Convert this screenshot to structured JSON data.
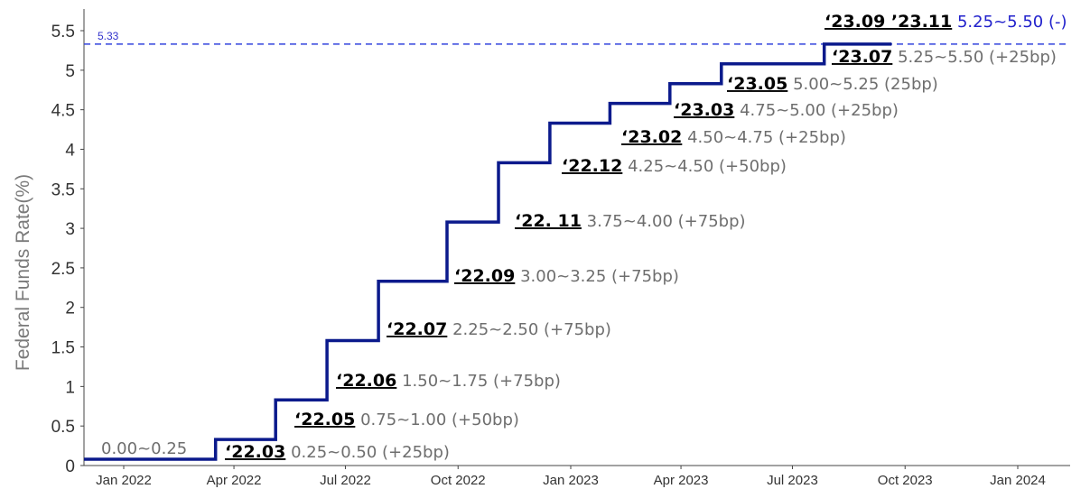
{
  "chart_data": {
    "type": "line",
    "ylabel": "Federal Funds Rate(%)",
    "xlabel": "",
    "ylim": [
      0,
      5.6
    ],
    "yticks": [
      "0",
      "0.5",
      "1",
      "1.5",
      "2",
      "2.5",
      "3",
      "3.5",
      "4",
      "4.5",
      "5",
      "5.5"
    ],
    "xticks": [
      "Jan 2022",
      "Apr 2022",
      "Jul 2022",
      "Oct 2022",
      "Jan 2023",
      "Apr 2023",
      "Jul 2023",
      "Oct 2023",
      "Jan 2024"
    ],
    "xtick_dates": [
      "2022-01-01",
      "2022-04-01",
      "2022-07-01",
      "2022-10-01",
      "2023-01-01",
      "2023-04-01",
      "2023-07-01",
      "2023-10-01",
      "2024-01-01"
    ],
    "series": [
      {
        "color": "#0b1a8c",
        "step": true,
        "x": [
          "2021-12-01",
          "2022-03-17",
          "2022-05-05",
          "2022-06-16",
          "2022-07-28",
          "2022-09-22",
          "2022-11-03",
          "2022-12-15",
          "2023-02-02",
          "2023-03-23",
          "2023-05-04",
          "2023-07-27",
          "2023-09-20"
        ],
        "y": [
          0.08,
          0.33,
          0.83,
          1.58,
          2.33,
          3.08,
          3.83,
          4.33,
          4.58,
          4.83,
          5.08,
          5.33,
          5.33
        ]
      }
    ],
    "reference_line": {
      "value": 5.33,
      "label": "5.33",
      "color": "#3344dd",
      "style": "dashed"
    },
    "annotations": [
      {
        "date": "",
        "rate": "0.00~0.25"
      },
      {
        "date": "‘22.03",
        "rate": "0.25~0.50 (+25bp)"
      },
      {
        "date": "‘22.05",
        "rate": "0.75~1.00 (+50bp)"
      },
      {
        "date": "‘22.06",
        "rate": "1.50~1.75 (+75bp)"
      },
      {
        "date": "‘22.07",
        "rate": "2.25~2.50 (+75bp)"
      },
      {
        "date": "‘22.09",
        "rate": "3.00~3.25 (+75bp)"
      },
      {
        "date": "‘22. 11",
        "rate": "3.75~4.00 (+75bp)"
      },
      {
        "date": "‘22.12",
        "rate": "4.25~4.50 (+50bp)"
      },
      {
        "date": "‘23.02",
        "rate": "4.50~4.75 (+25bp)"
      },
      {
        "date": "‘23.03",
        "rate": "4.75~5.00 (+25bp)"
      },
      {
        "date": "‘23.05",
        "rate": "5.00~5.25 (25bp)"
      },
      {
        "date": "‘23.07",
        "rate": "5.25~5.50 (+25bp)"
      },
      {
        "date": "‘23.09 ’23.11",
        "rate": "5.25~5.50 (-)"
      }
    ]
  }
}
